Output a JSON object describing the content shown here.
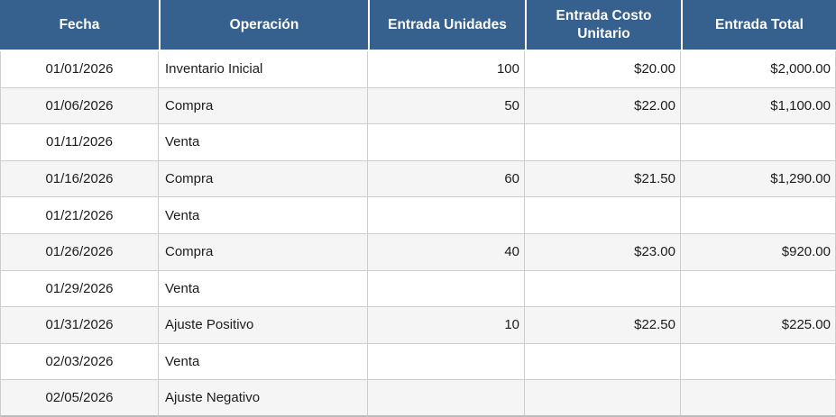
{
  "table": {
    "columns": [
      {
        "key": "fecha",
        "label": "Fecha",
        "align": "center"
      },
      {
        "key": "operacion",
        "label": "Operación",
        "align": "left"
      },
      {
        "key": "unidades",
        "label": "Entrada Unidades",
        "align": "right"
      },
      {
        "key": "costo",
        "label": "Entrada Costo Unitario",
        "align": "right"
      },
      {
        "key": "total",
        "label": "Entrada Total",
        "align": "right"
      }
    ],
    "rows": [
      {
        "fecha": "01/01/2026",
        "operacion": "Inventario Inicial",
        "unidades": "100",
        "costo": "$20.00",
        "total": "$2,000.00"
      },
      {
        "fecha": "01/06/2026",
        "operacion": "Compra",
        "unidades": "50",
        "costo": "$22.00",
        "total": "$1,100.00"
      },
      {
        "fecha": "01/11/2026",
        "operacion": "Venta",
        "unidades": "",
        "costo": "",
        "total": ""
      },
      {
        "fecha": "01/16/2026",
        "operacion": "Compra",
        "unidades": "60",
        "costo": "$21.50",
        "total": "$1,290.00"
      },
      {
        "fecha": "01/21/2026",
        "operacion": "Venta",
        "unidades": "",
        "costo": "",
        "total": ""
      },
      {
        "fecha": "01/26/2026",
        "operacion": "Compra",
        "unidades": "40",
        "costo": "$23.00",
        "total": "$920.00"
      },
      {
        "fecha": "01/29/2026",
        "operacion": "Venta",
        "unidades": "",
        "costo": "",
        "total": ""
      },
      {
        "fecha": "01/31/2026",
        "operacion": "Ajuste Positivo",
        "unidades": "10",
        "costo": "$22.50",
        "total": "$225.00"
      },
      {
        "fecha": "02/03/2026",
        "operacion": "Venta",
        "unidades": "",
        "costo": "",
        "total": ""
      },
      {
        "fecha": "02/05/2026",
        "operacion": "Ajuste Negativo",
        "unidades": "",
        "costo": "",
        "total": ""
      }
    ]
  },
  "colors": {
    "header_bg": "#36618e",
    "header_text": "#ffffff",
    "row_bg": "#ffffff",
    "row_alt_bg": "#f5f5f5",
    "grid_line": "#cdcdcd",
    "outer_bottom_border": "#bdbdbd",
    "cell_text": "#1c1c1c"
  }
}
